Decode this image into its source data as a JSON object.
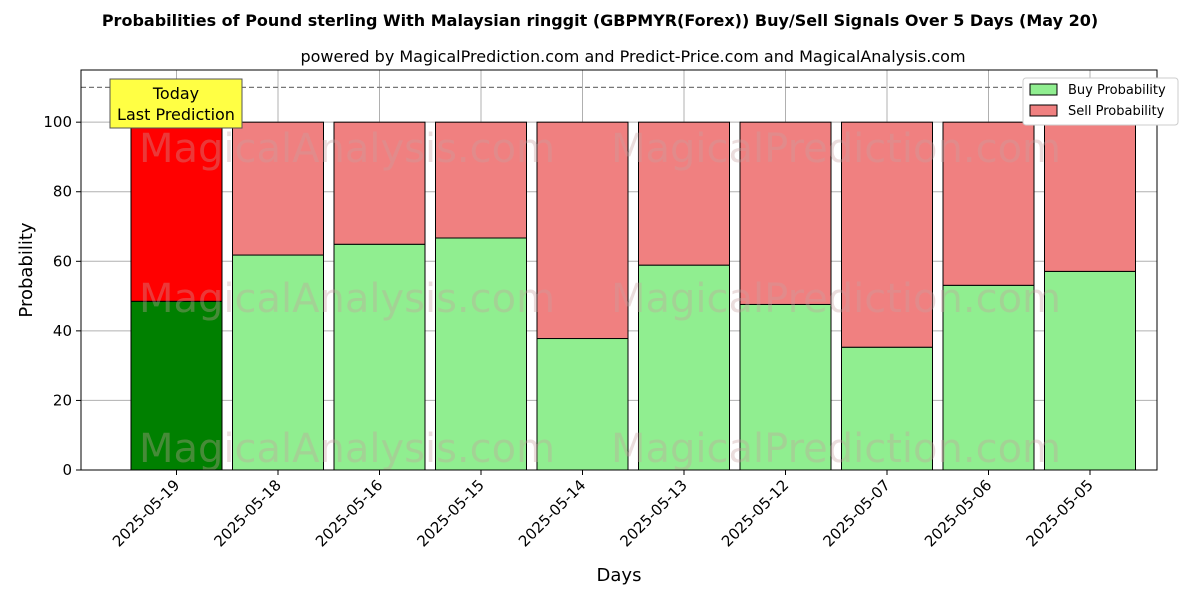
{
  "chart_data": {
    "type": "bar",
    "stacked": true,
    "title": "Probabilities of Pound sterling With Malaysian ringgit (GBPMYR(Forex)) Buy/Sell Signals Over 5 Days (May 20)",
    "subtitle": "powered by MagicalPrediction.com and Predict-Price.com and MagicalAnalysis.com",
    "xlabel": "Days",
    "ylabel": "Probability",
    "ylim": [
      0,
      115
    ],
    "yticks": [
      0,
      20,
      40,
      60,
      80,
      100
    ],
    "grid": true,
    "legend_position": "top-right",
    "reference_line": 110,
    "categories": [
      "2025-05-19",
      "2025-05-18",
      "2025-05-16",
      "2025-05-15",
      "2025-05-14",
      "2025-05-13",
      "2025-05-12",
      "2025-05-07",
      "2025-05-06",
      "2025-05-05"
    ],
    "series": [
      {
        "name": "Buy Probability",
        "color": "#90ee90",
        "highlight_color": "#008000",
        "values": [
          48.5,
          61.8,
          64.9,
          66.7,
          37.8,
          58.9,
          47.6,
          35.3,
          53.1,
          57.1
        ]
      },
      {
        "name": "Sell Probability",
        "color": "#f08080",
        "highlight_color": "#ff0000",
        "values": [
          51.5,
          38.2,
          35.1,
          33.3,
          62.2,
          41.1,
          52.4,
          64.7,
          46.9,
          42.9
        ]
      }
    ],
    "annotation": {
      "line1": "Today",
      "line2": "Last Prediction",
      "color": "#ffff44"
    },
    "watermarks": [
      "MagicalAnalysis.com",
      "MagicalPrediction.com"
    ]
  }
}
